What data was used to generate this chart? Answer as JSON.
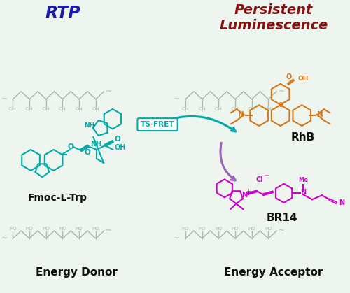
{
  "bg_color": "#eef4ee",
  "title_rtp": "RTP",
  "title_rtp_color": "#1a1aaa",
  "title_pl_line1": "Persistent",
  "title_pl_line2": "Luminescence",
  "title_pl_color": "#8b1010",
  "label_donor": "Energy Donor",
  "label_acceptor": "Energy Acceptor",
  "label_fmoc": "Fmoc-L-Trp",
  "label_rhb": "RhB",
  "label_br14": "BR14",
  "label_tsfret": "TS-FRET",
  "fmoc_color": "#00aaaa",
  "rhb_color": "#d4781a",
  "br14_color": "#cc00cc",
  "tsfret_color": "#00aaaa",
  "arrow_color": "#9966bb",
  "pva_color": "#aabcaa",
  "label_color": "#111111",
  "figsize": [
    5.0,
    4.19
  ],
  "dpi": 100
}
